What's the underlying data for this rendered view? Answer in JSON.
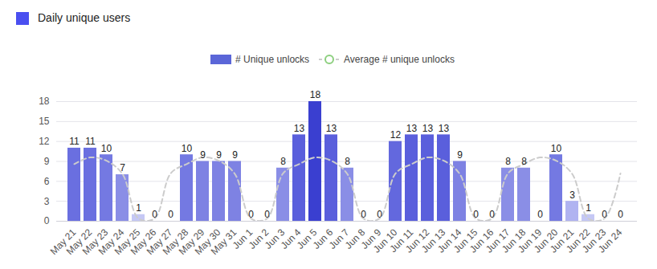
{
  "chart_data": {
    "type": "bar",
    "title": "Daily unique users",
    "categories": [
      "May 21",
      "May 22",
      "May 23",
      "May 24",
      "May 25",
      "May 26",
      "May 27",
      "May 28",
      "May 29",
      "May 30",
      "May 31",
      "Jun 1",
      "Jun 2",
      "Jun 3",
      "Jun 4",
      "Jun 5",
      "Jun 6",
      "Jun 7",
      "Jun 8",
      "Jun 9",
      "Jun 10",
      "Jun 11",
      "Jun 12",
      "Jun 13",
      "Jun 14",
      "Jun 15",
      "Jun 16",
      "Jun 17",
      "Jun 18",
      "Jun 19",
      "Jun 20",
      "Jun 21",
      "Jun 22",
      "Jun 23",
      "Jun 24"
    ],
    "series": [
      {
        "name": "# Unique unlocks",
        "type": "bar",
        "color": "#5b66d8",
        "data_labels": true,
        "values": [
          11,
          11,
          10,
          7,
          1,
          0,
          0,
          10,
          9,
          9,
          9,
          0,
          0,
          8,
          13,
          18,
          13,
          8,
          0,
          0,
          12,
          13,
          13,
          13,
          9,
          0,
          0,
          8,
          8,
          0,
          10,
          3,
          1,
          0,
          0
        ],
        "colors": [
          "#6a6fe0",
          "#6a6fe0",
          "#7479e2",
          "#8a8ee6",
          "#c5c8f5",
          "#7b7fe3",
          "#7b7fe3",
          "#7479e2",
          "#7e82e3",
          "#7e82e3",
          "#7e82e3",
          "#7b7fe3",
          "#7b7fe3",
          "#8a8ee6",
          "#5a5fdc",
          "#3a3fd0",
          "#5a5fdc",
          "#8a8ee6",
          "#7b7fe3",
          "#7b7fe3",
          "#6368de",
          "#5a5fdc",
          "#5a5fdc",
          "#5a5fdc",
          "#7e82e3",
          "#7b7fe3",
          "#7b7fe3",
          "#8a8ee6",
          "#8a8ee6",
          "#7b7fe3",
          "#7479e2",
          "#b0b3f1",
          "#c5c8f5",
          "#7b7fe3",
          "#7b7fe3"
        ]
      },
      {
        "name": "Average # unique unlocks",
        "type": "line",
        "color": "#cccccc",
        "line_style": "dashed",
        "marker": "circle",
        "values": [
          8.6,
          9.6,
          9.1,
          7.1,
          0.4,
          0.4,
          7.2,
          8.6,
          9.6,
          9.1,
          7.1,
          0.4,
          0.4,
          7.2,
          8.6,
          9.6,
          9.1,
          7.1,
          0.4,
          0.4,
          7.2,
          8.6,
          9.6,
          9.1,
          7.1,
          0.4,
          0.4,
          7.2,
          8.6,
          9.6,
          9.1,
          7.1,
          0.4,
          0.4,
          7.2
        ]
      }
    ],
    "ylim": [
      0,
      18
    ],
    "yticks": [
      0,
      3,
      6,
      9,
      12,
      15,
      18
    ],
    "grid": true,
    "legend": "top"
  }
}
